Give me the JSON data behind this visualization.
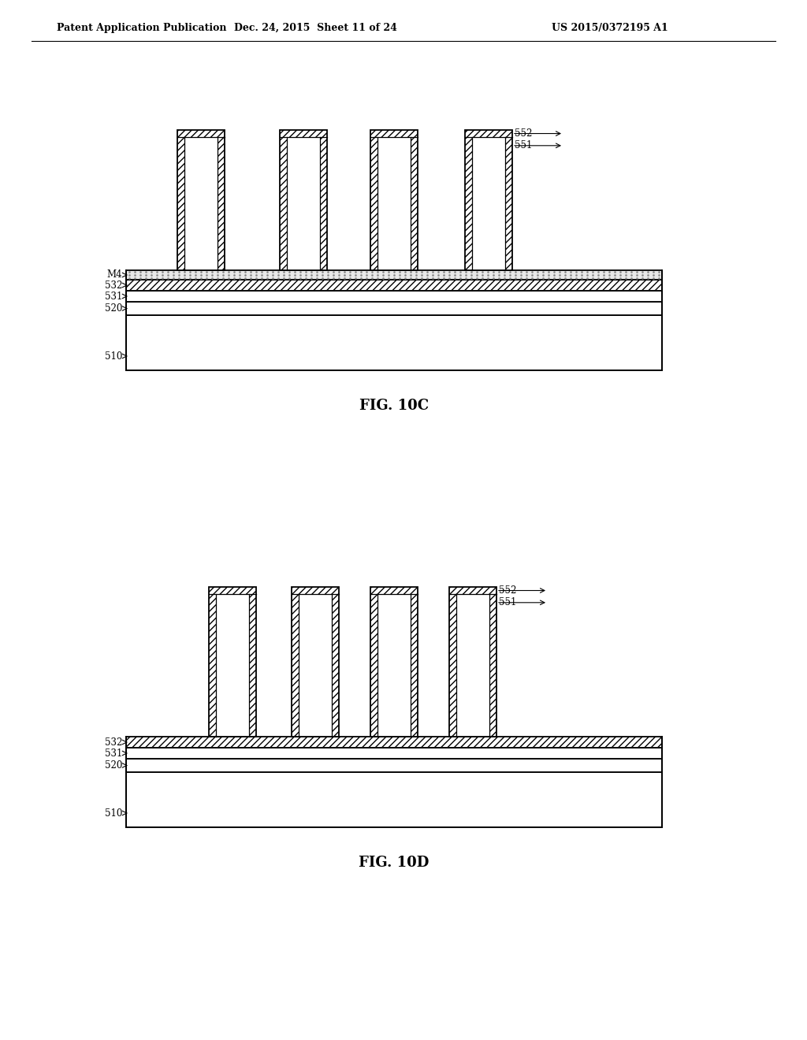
{
  "background_color": "#ffffff",
  "header_left": "Patent Application Publication",
  "header_mid": "Dec. 24, 2015  Sheet 11 of 24",
  "header_right": "US 2015/0372195 A1",
  "fig10c_label": "FIG. 10C",
  "fig10d_label": "FIG. 10D",
  "line_color": "#000000"
}
